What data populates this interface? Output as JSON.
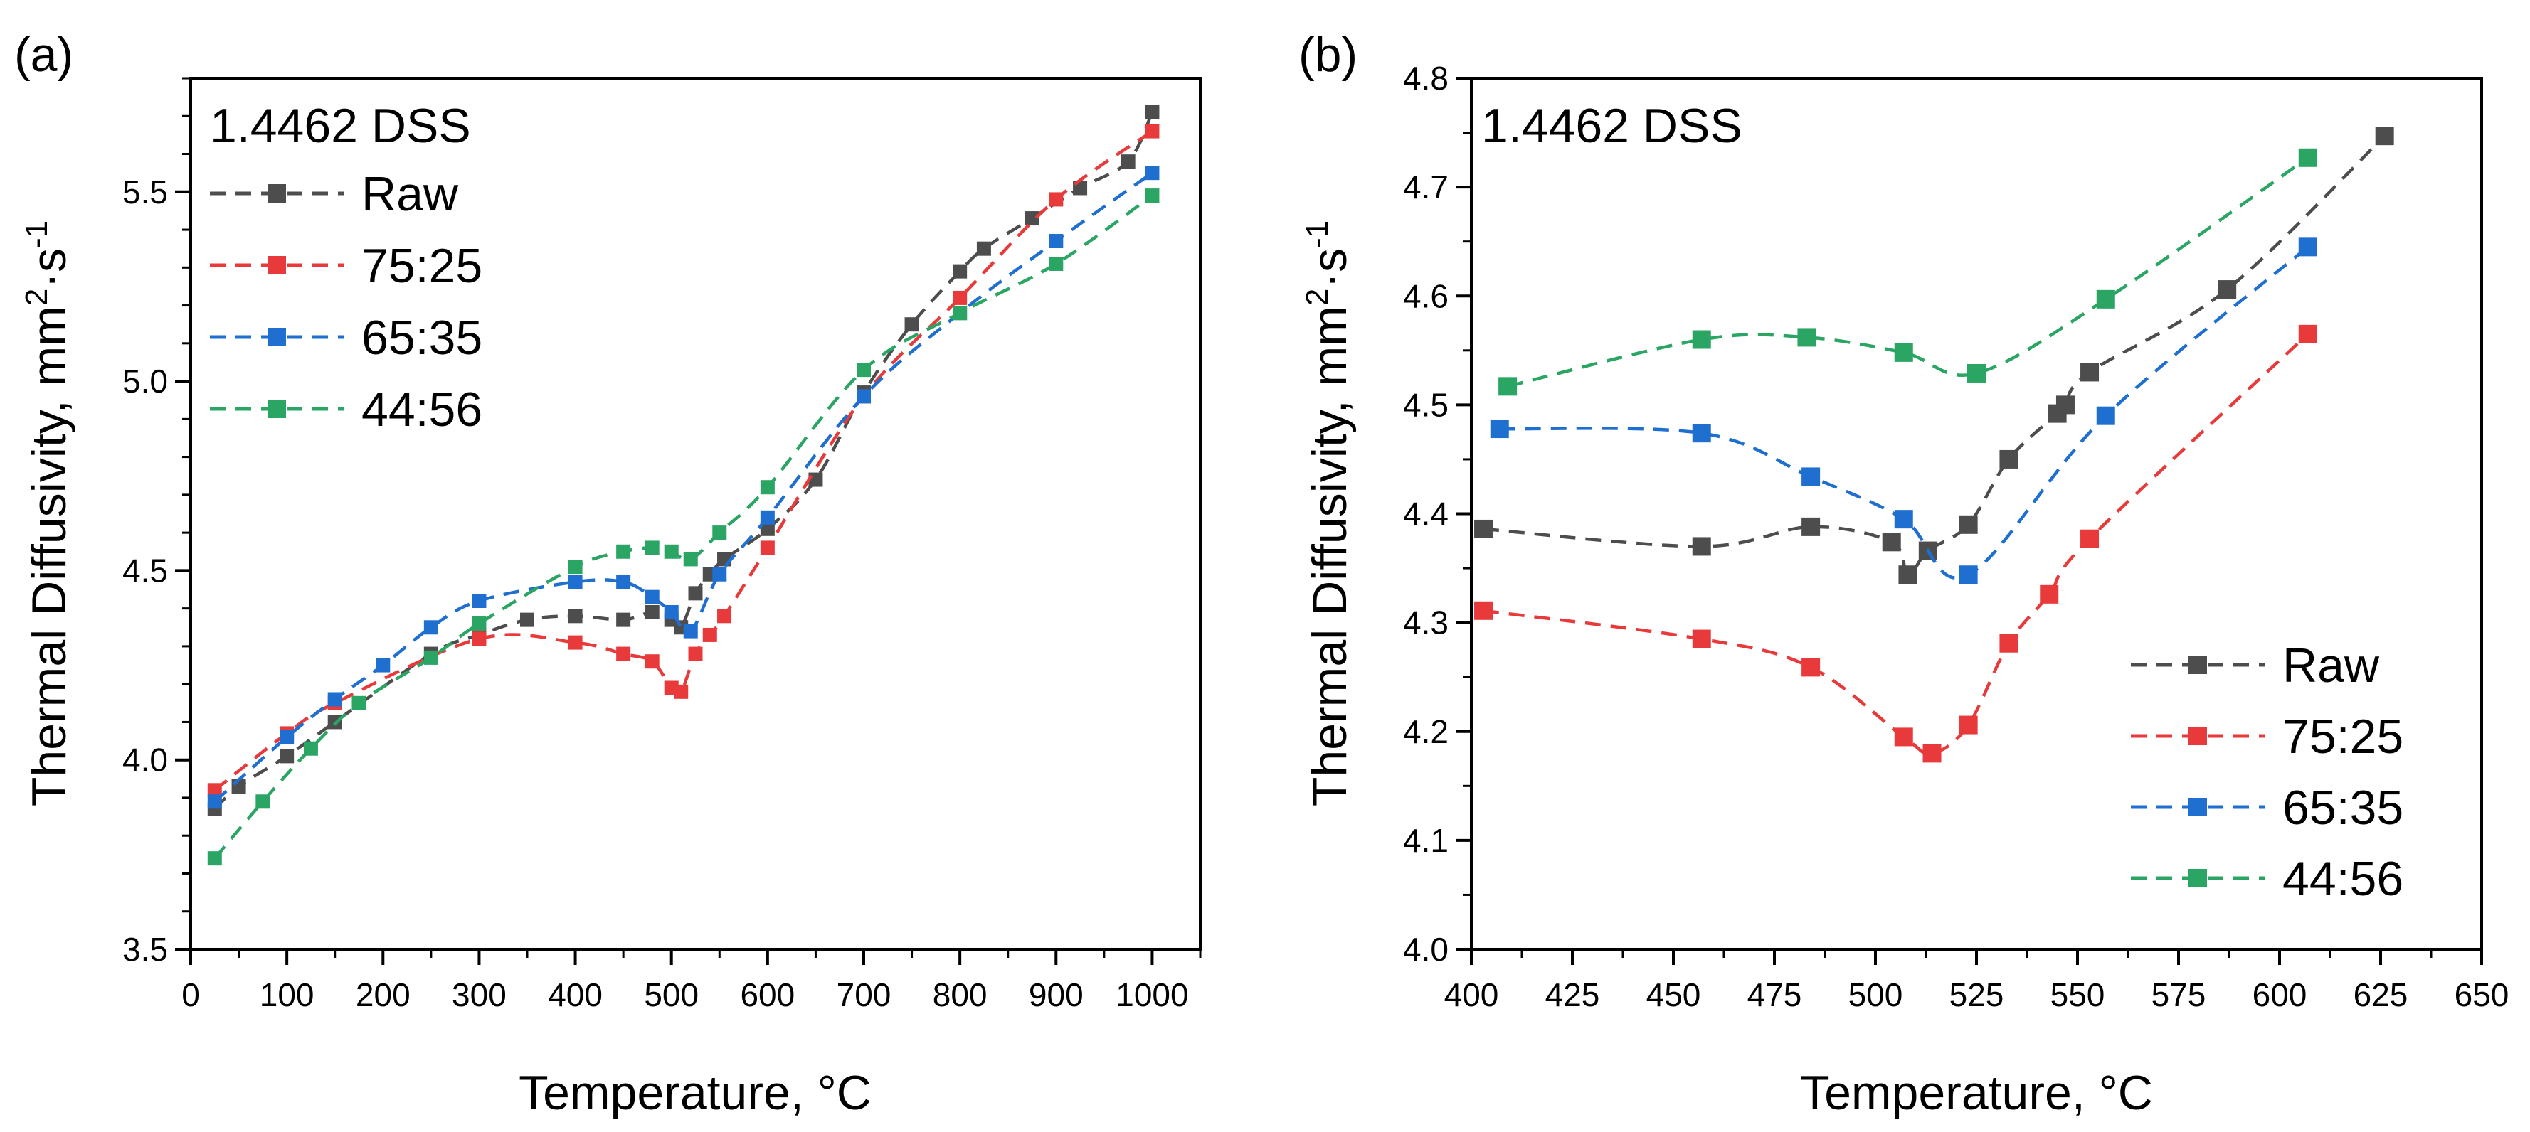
{
  "chart_data": [
    {
      "type": "line",
      "panel_label": "(a)",
      "title": "1.4462 DSS",
      "xlabel": "Temperature, °C",
      "ylabel": "Thermal Diffusivity, mm²·s⁻¹",
      "ylabel_parts": [
        "Thermal Diffusivity, mm",
        "2",
        "·s",
        "-1"
      ],
      "xlim": [
        0,
        1050
      ],
      "ylim": [
        3.5,
        5.8
      ],
      "xticks": [
        0,
        100,
        200,
        300,
        400,
        500,
        600,
        700,
        800,
        900,
        1000
      ],
      "yticks": [
        3.5,
        4.0,
        4.5,
        5.0,
        5.5
      ],
      "ytick_labels": [
        "3.5",
        "4.0",
        "4.5",
        "5.0",
        "5.5"
      ],
      "legend_position": "top-left",
      "grid": false,
      "series": [
        {
          "name": "Raw",
          "color": "#4d4d4d",
          "x": [
            25,
            50,
            100,
            150,
            250,
            300,
            350,
            400,
            450,
            480,
            500,
            510,
            525,
            540,
            555,
            600,
            650,
            700,
            750,
            800,
            825,
            875,
            925,
            975,
            1000
          ],
          "y": [
            3.87,
            3.93,
            4.01,
            4.1,
            4.28,
            4.33,
            4.37,
            4.38,
            4.37,
            4.39,
            4.37,
            4.35,
            4.44,
            4.49,
            4.53,
            4.61,
            4.74,
            4.97,
            5.15,
            5.29,
            5.35,
            5.43,
            5.51,
            5.58,
            5.71
          ]
        },
        {
          "name": "75:25",
          "color": "#e83a3a",
          "x": [
            25,
            100,
            150,
            300,
            400,
            450,
            480,
            500,
            510,
            525,
            540,
            555,
            600,
            700,
            800,
            900,
            1000
          ],
          "y": [
            3.92,
            4.07,
            4.15,
            4.32,
            4.31,
            4.28,
            4.26,
            4.19,
            4.18,
            4.28,
            4.33,
            4.38,
            4.56,
            4.96,
            5.22,
            5.48,
            5.66
          ]
        },
        {
          "name": "65:35",
          "color": "#1f6fd1",
          "x": [
            25,
            100,
            150,
            200,
            250,
            300,
            400,
            450,
            480,
            500,
            520,
            550,
            600,
            700,
            800,
            900,
            1000
          ],
          "y": [
            3.89,
            4.06,
            4.16,
            4.25,
            4.35,
            4.42,
            4.47,
            4.47,
            4.43,
            4.39,
            4.34,
            4.49,
            4.64,
            4.96,
            5.18,
            5.37,
            5.55
          ]
        },
        {
          "name": "44:56",
          "color": "#2aa563",
          "x": [
            25,
            75,
            125,
            175,
            250,
            300,
            400,
            450,
            480,
            500,
            520,
            550,
            600,
            700,
            800,
            900,
            1000
          ],
          "y": [
            3.74,
            3.89,
            4.03,
            4.15,
            4.27,
            4.36,
            4.51,
            4.55,
            4.56,
            4.55,
            4.53,
            4.6,
            4.72,
            5.03,
            5.18,
            5.31,
            5.49
          ]
        }
      ]
    },
    {
      "type": "line",
      "panel_label": "(b)",
      "title": "1.4462 DSS",
      "xlabel": "Temperature, °C",
      "ylabel": "Thermal Diffusivity, mm²·s⁻¹",
      "ylabel_parts": [
        "Thermal Diffusivity, mm",
        "2",
        "·s",
        "-1"
      ],
      "xlim": [
        400,
        650
      ],
      "ylim": [
        4.0,
        4.8
      ],
      "xticks": [
        400,
        425,
        450,
        475,
        500,
        525,
        550,
        575,
        600,
        625,
        650
      ],
      "yticks": [
        4.0,
        4.1,
        4.2,
        4.3,
        4.4,
        4.5,
        4.6,
        4.7,
        4.8
      ],
      "ytick_labels": [
        "4.0",
        "4.1",
        "4.2",
        "4.3",
        "4.4",
        "4.5",
        "4.6",
        "4.7",
        "4.8"
      ],
      "legend_position": "bottom-right",
      "grid": false,
      "series": [
        {
          "name": "Raw",
          "color": "#4d4d4d",
          "x": [
            403,
            457,
            484,
            504,
            508,
            513,
            523,
            533,
            545,
            547,
            553,
            587,
            626
          ],
          "y": [
            4.386,
            4.37,
            4.388,
            4.374,
            4.344,
            4.366,
            4.39,
            4.45,
            4.492,
            4.5,
            4.53,
            4.606,
            4.747
          ]
        },
        {
          "name": "75:25",
          "color": "#e83a3a",
          "x": [
            403,
            457,
            484,
            507,
            514,
            523,
            533,
            543,
            553,
            607
          ],
          "y": [
            4.311,
            4.285,
            4.259,
            4.195,
            4.18,
            4.206,
            4.281,
            4.326,
            4.377,
            4.565
          ]
        },
        {
          "name": "65:35",
          "color": "#1f6fd1",
          "x": [
            407,
            457,
            484,
            507,
            523,
            557,
            607
          ],
          "y": [
            4.478,
            4.474,
            4.434,
            4.395,
            4.344,
            4.49,
            4.645
          ]
        },
        {
          "name": "44:56",
          "color": "#2aa563",
          "x": [
            409,
            457,
            483,
            507,
            525,
            557,
            607
          ],
          "y": [
            4.517,
            4.56,
            4.562,
            4.548,
            4.529,
            4.597,
            4.727
          ]
        }
      ]
    }
  ]
}
